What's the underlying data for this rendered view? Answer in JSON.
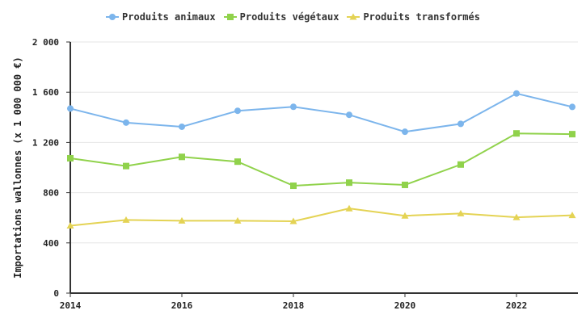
{
  "chart_data": {
    "type": "line",
    "title": "",
    "xlabel": "",
    "ylabel": "Importations wallonnes  (x 1 000 000 €)",
    "x": [
      2014,
      2015,
      2016,
      2017,
      2018,
      2019,
      2020,
      2021,
      2022,
      2023
    ],
    "xlim": [
      2014,
      2023
    ],
    "ylim": [
      0,
      2000
    ],
    "x_ticks": [
      2014,
      2016,
      2018,
      2020,
      2022
    ],
    "x_tick_labels": [
      "2014",
      "2016",
      "2018",
      "2020",
      "2022"
    ],
    "y_ticks": [
      0,
      400,
      800,
      1200,
      1600,
      2000
    ],
    "y_tick_labels": [
      "0",
      "400",
      "800",
      "1 200",
      "1 600",
      "2 000"
    ],
    "grid": true,
    "legend_position": "top",
    "series": [
      {
        "name": "Produits animaux",
        "color": "#7cb5ec",
        "marker": "circle",
        "values": [
          1470,
          1358,
          1325,
          1452,
          1484,
          1420,
          1285,
          1348,
          1590,
          1483
        ]
      },
      {
        "name": "Produits végétaux",
        "color": "#90d24b",
        "marker": "square",
        "values": [
          1074,
          1012,
          1085,
          1047,
          855,
          880,
          862,
          1024,
          1272,
          1266
        ]
      },
      {
        "name": "Produits transformés",
        "color": "#e4d354",
        "marker": "triangle",
        "values": [
          537,
          583,
          576,
          576,
          572,
          674,
          616,
          634,
          604,
          620
        ]
      }
    ]
  }
}
